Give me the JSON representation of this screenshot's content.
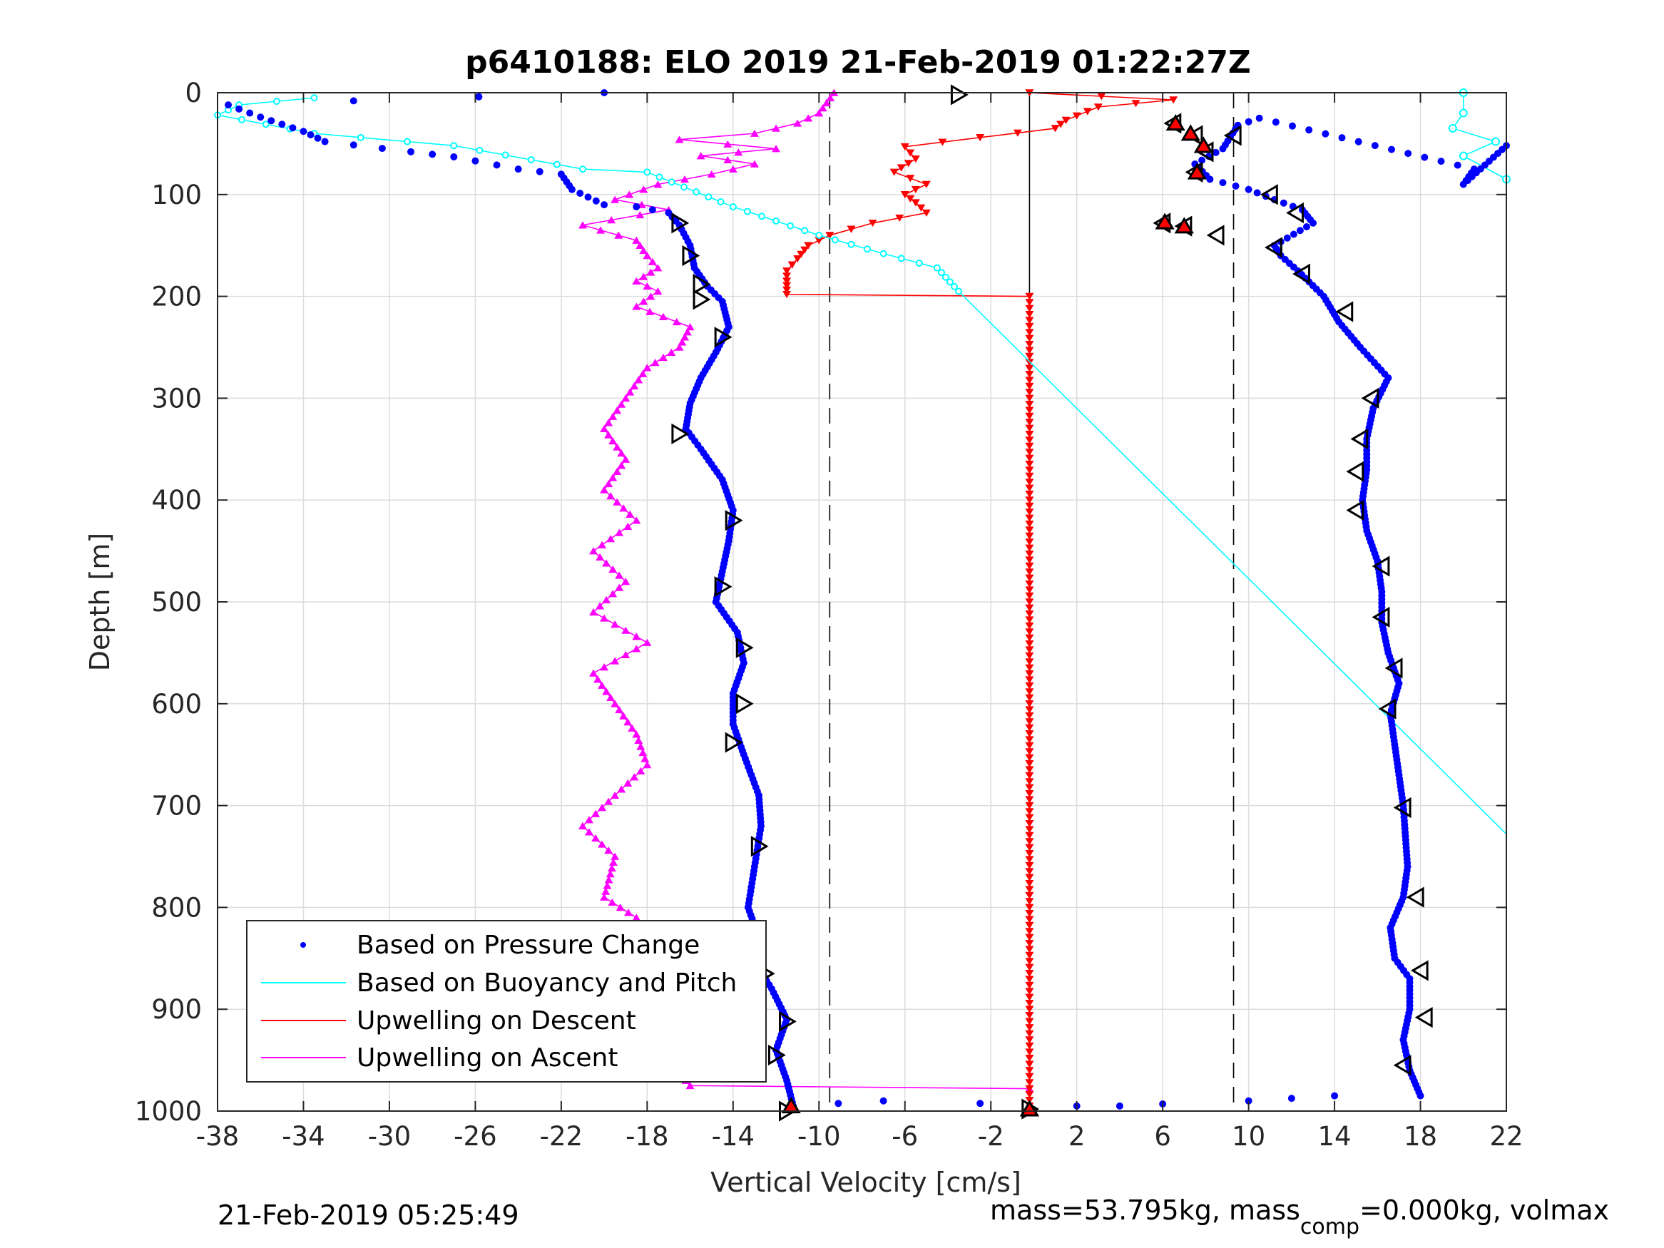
{
  "chart_data": {
    "type": "scatter",
    "title": "p6410188: ELO 2019 21-Feb-2019 01:22:27Z",
    "xlabel": "Vertical Velocity [cm/s]",
    "ylabel": "Depth [m]",
    "xlim": [
      -38,
      22
    ],
    "ylim": [
      0,
      1000
    ],
    "y_reversed": true,
    "grid": true,
    "xticks": [
      -38,
      -34,
      -30,
      -26,
      -22,
      -18,
      -14,
      -10,
      -6,
      -2,
      2,
      6,
      10,
      14,
      18,
      22
    ],
    "yticks": [
      0,
      100,
      200,
      300,
      400,
      500,
      600,
      700,
      800,
      900,
      1000
    ],
    "legend_position": "bottom-left",
    "vlines": [
      {
        "x": -9.5,
        "style": "dashed"
      },
      {
        "x": 9.3,
        "style": "dashed"
      },
      {
        "x": -0.2,
        "style": "solid"
      }
    ],
    "series": [
      {
        "name": "Based on Pressure Change",
        "color": "#0000ff",
        "marker": "dot",
        "descent": [
          [
            -20,
            0
          ],
          [
            -37.5,
            12
          ],
          [
            -36,
            24
          ],
          [
            -34,
            38
          ],
          [
            -33,
            48
          ],
          [
            -29,
            58
          ],
          [
            -27,
            63
          ],
          [
            -24,
            75
          ],
          [
            -22,
            80
          ],
          [
            -21.5,
            95
          ],
          [
            -20,
            110
          ],
          [
            -18.5,
            112
          ],
          [
            -17,
            118
          ],
          [
            -16.5,
            130
          ],
          [
            -16,
            150
          ],
          [
            -15.8,
            172
          ],
          [
            -15.2,
            190
          ],
          [
            -14.5,
            205
          ],
          [
            -14.2,
            230
          ],
          [
            -14.8,
            255
          ],
          [
            -15.5,
            280
          ],
          [
            -16,
            305
          ],
          [
            -16.2,
            330
          ],
          [
            -15.5,
            350
          ],
          [
            -14.5,
            380
          ],
          [
            -14,
            410
          ],
          [
            -14.2,
            440
          ],
          [
            -14.5,
            470
          ],
          [
            -14.8,
            500
          ],
          [
            -13.8,
            530
          ],
          [
            -13.5,
            560
          ],
          [
            -14,
            590
          ],
          [
            -14,
            620
          ],
          [
            -13.5,
            650
          ],
          [
            -12.8,
            690
          ],
          [
            -12.7,
            720
          ],
          [
            -13,
            760
          ],
          [
            -13.3,
            800
          ],
          [
            -12.8,
            830
          ],
          [
            -12.8,
            860
          ],
          [
            -12.2,
            880
          ],
          [
            -11.5,
            910
          ],
          [
            -12,
            940
          ],
          [
            -11.5,
            970
          ],
          [
            -11.2,
            995
          ],
          [
            -7,
            990
          ],
          [
            2,
            995
          ],
          [
            4,
            995
          ],
          [
            6,
            993
          ],
          [
            10,
            990
          ],
          [
            14,
            985
          ]
        ],
        "ascent": [
          [
            22,
            52
          ],
          [
            20,
            90
          ],
          [
            20.5,
            75
          ],
          [
            10.5,
            25
          ],
          [
            9.5,
            32
          ],
          [
            8.8,
            55
          ],
          [
            7.5,
            70
          ],
          [
            8.2,
            85
          ],
          [
            10,
            95
          ],
          [
            11.2,
            105
          ],
          [
            12.5,
            115
          ],
          [
            13,
            128
          ],
          [
            11.2,
            150
          ],
          [
            11.5,
            160
          ],
          [
            12.3,
            175
          ],
          [
            13.5,
            200
          ],
          [
            14.2,
            225
          ],
          [
            15.2,
            250
          ],
          [
            16.5,
            280
          ],
          [
            15.8,
            310
          ],
          [
            15.5,
            340
          ],
          [
            15.5,
            370
          ],
          [
            15.3,
            400
          ],
          [
            15.5,
            430
          ],
          [
            16,
            460
          ],
          [
            16.2,
            490
          ],
          [
            16.2,
            520
          ],
          [
            16.5,
            550
          ],
          [
            17,
            580
          ],
          [
            16.6,
            610
          ],
          [
            16.8,
            640
          ],
          [
            17,
            670
          ],
          [
            17.2,
            700
          ],
          [
            17.3,
            730
          ],
          [
            17.4,
            760
          ],
          [
            17.2,
            790
          ],
          [
            16.6,
            820
          ],
          [
            16.8,
            850
          ],
          [
            17.5,
            870
          ],
          [
            17.5,
            900
          ],
          [
            17.2,
            930
          ],
          [
            17.5,
            960
          ],
          [
            18,
            985
          ]
        ]
      },
      {
        "name": "Based on Buoyancy and Pitch",
        "color": "#00ffff",
        "marker": "circle",
        "points": [
          [
            -33.5,
            5
          ],
          [
            -37,
            12
          ],
          [
            -38,
            22
          ],
          [
            -33.5,
            40
          ],
          [
            -27,
            52
          ],
          [
            -21,
            75
          ],
          [
            -18,
            78
          ],
          [
            -14,
            112
          ],
          [
            -10,
            140
          ],
          [
            -7,
            158
          ],
          [
            -4.5,
            172
          ],
          [
            -3.5,
            195
          ],
          [
            22,
            728
          ]
        ],
        "surface_cluster": [
          [
            20,
            0
          ],
          [
            20,
            20
          ],
          [
            19.5,
            35
          ],
          [
            21.5,
            48
          ],
          [
            20,
            62
          ],
          [
            22,
            85
          ]
        ]
      },
      {
        "name": "Upwelling on Descent",
        "color": "#ff0000",
        "marker": "triangle-down",
        "points": [
          [
            -0.2,
            0
          ],
          [
            6.5,
            7
          ],
          [
            3,
            14
          ],
          [
            1.5,
            27
          ],
          [
            1,
            35
          ],
          [
            -2.5,
            44
          ],
          [
            -6,
            53
          ],
          [
            -5.5,
            65
          ],
          [
            -6.5,
            78
          ],
          [
            -5,
            90
          ],
          [
            -6,
            100
          ],
          [
            -5.5,
            108
          ],
          [
            -5,
            118
          ],
          [
            -7.5,
            128
          ],
          [
            -9.5,
            140
          ],
          [
            -10.5,
            150
          ],
          [
            -11,
            163
          ],
          [
            -11.5,
            175
          ],
          [
            -11.5,
            185
          ],
          [
            -11.5,
            198
          ],
          [
            -0.2,
            200
          ],
          [
            -0.2,
            300
          ],
          [
            -0.2,
            400
          ],
          [
            -0.2,
            500
          ],
          [
            -0.2,
            600
          ],
          [
            -0.2,
            700
          ],
          [
            -0.2,
            800
          ],
          [
            -0.2,
            900
          ],
          [
            -0.2,
            978
          ],
          [
            -0.2,
            995
          ]
        ]
      },
      {
        "name": "Upwelling on Ascent",
        "color": "#ff00ff",
        "marker": "triangle-up",
        "points": [
          [
            -9.3,
            0
          ],
          [
            -10,
            20
          ],
          [
            -11,
            30
          ],
          [
            -13,
            40
          ],
          [
            -16.5,
            46
          ],
          [
            -12,
            55
          ],
          [
            -15.5,
            62
          ],
          [
            -13,
            70
          ],
          [
            -15,
            80
          ],
          [
            -17.5,
            90
          ],
          [
            -19.5,
            105
          ],
          [
            -17,
            115
          ],
          [
            -21,
            130
          ],
          [
            -18.5,
            145
          ],
          [
            -18,
            160
          ],
          [
            -17.5,
            172
          ],
          [
            -18.5,
            185
          ],
          [
            -17.5,
            195
          ],
          [
            -18.5,
            210
          ],
          [
            -16,
            230
          ],
          [
            -16.5,
            250
          ],
          [
            -18,
            270
          ],
          [
            -19,
            300
          ],
          [
            -20,
            330
          ],
          [
            -19,
            360
          ],
          [
            -20,
            390
          ],
          [
            -18.5,
            420
          ],
          [
            -20.5,
            450
          ],
          [
            -19,
            480
          ],
          [
            -20.5,
            510
          ],
          [
            -18,
            540
          ],
          [
            -20.5,
            570
          ],
          [
            -19.5,
            600
          ],
          [
            -18.5,
            630
          ],
          [
            -18,
            660
          ],
          [
            -19.5,
            690
          ],
          [
            -21,
            720
          ],
          [
            -19.5,
            750
          ],
          [
            -20,
            790
          ],
          [
            -18.5,
            810
          ],
          [
            -19.5,
            840
          ],
          [
            -18.5,
            870
          ],
          [
            -17.5,
            900
          ],
          [
            -19,
            930
          ],
          [
            -17,
            950
          ],
          [
            -16,
            975
          ],
          [
            -0.2,
            978
          ]
        ]
      }
    ],
    "black_triangle_markers": [
      [
        -3.5,
        2
      ],
      [
        9.3,
        42
      ],
      [
        11,
        100
      ],
      [
        12.2,
        118
      ],
      [
        11.2,
        152
      ],
      [
        12.5,
        178
      ],
      [
        14.5,
        215
      ],
      [
        15.7,
        300
      ],
      [
        15.2,
        340
      ],
      [
        15,
        372
      ],
      [
        15,
        410
      ],
      [
        16.2,
        465
      ],
      [
        16.2,
        515
      ],
      [
        16.8,
        565
      ],
      [
        16.5,
        605
      ],
      [
        17.2,
        702
      ],
      [
        17.8,
        790
      ],
      [
        18,
        862
      ],
      [
        18.2,
        908
      ],
      [
        17.2,
        955
      ],
      [
        -16.5,
        128
      ],
      [
        -16,
        160
      ],
      [
        -15.5,
        188
      ],
      [
        -15.5,
        203
      ],
      [
        -14.5,
        240
      ],
      [
        -16.5,
        335
      ],
      [
        -14,
        420
      ],
      [
        -14.5,
        485
      ],
      [
        -13.5,
        545
      ],
      [
        -13.5,
        600
      ],
      [
        -14,
        638
      ],
      [
        -12.8,
        740
      ],
      [
        -12.5,
        865
      ],
      [
        -11.5,
        912
      ],
      [
        -12,
        945
      ],
      [
        -11.5,
        1000
      ],
      [
        -0.2,
        998
      ],
      [
        6,
        128
      ],
      [
        7,
        131
      ],
      [
        8.5,
        140
      ],
      [
        6.5,
        30
      ],
      [
        7.5,
        42
      ],
      [
        8,
        58
      ],
      [
        7.5,
        78
      ]
    ],
    "red_filled_triangles": [
      [
        6.1,
        127
      ],
      [
        7,
        131
      ],
      [
        6.6,
        30
      ],
      [
        7.3,
        40
      ],
      [
        7.9,
        52
      ],
      [
        7.6,
        78
      ],
      [
        -0.2,
        998
      ],
      [
        -11.3,
        995
      ]
    ]
  },
  "footer": {
    "timestamp": "21-Feb-2019 05:25:49",
    "mass_text_1": "mass=53.795kg, mass",
    "mass_sub": "comp",
    "mass_text_2": "=0.000kg, volmax"
  }
}
